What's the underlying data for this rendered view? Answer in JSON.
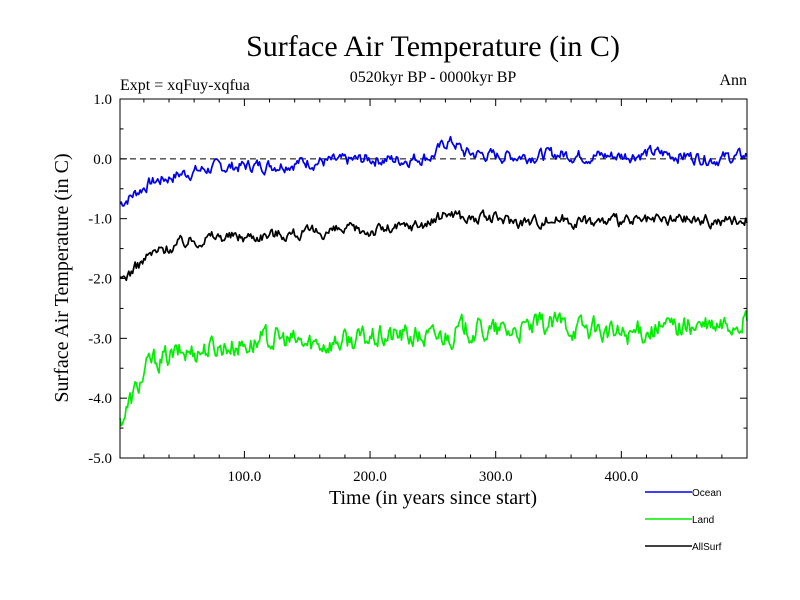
{
  "chart_data": {
    "type": "line",
    "title": "Surface Air Temperature (in C)",
    "subtitle": "0520kyr BP - 0000kyr BP",
    "experiment_label": "Expt = xqFuy-xqfua",
    "season_label": "Ann",
    "xlabel": "Time (in years since start)",
    "ylabel": "Surface Air Temperature (in C)",
    "xlim": [
      1,
      500
    ],
    "ylim": [
      -5.0,
      1.0
    ],
    "x_ticks": [
      100,
      200,
      300,
      400
    ],
    "x_tick_labels": [
      "100.0",
      "200.0",
      "300.0",
      "400.0"
    ],
    "y_ticks": [
      -5,
      -4,
      -3,
      -2,
      -1,
      0,
      1
    ],
    "y_tick_labels": [
      "-5.0",
      "-4.0",
      "-3.0",
      "-2.0",
      "-1.0",
      "0.0",
      "1.0"
    ],
    "reference_line": 0.0,
    "series": [
      {
        "name": "Ocean",
        "color": "#0000ee",
        "x": [
          1,
          25,
          50,
          75,
          100,
          125,
          150,
          175,
          200,
          225,
          250,
          262,
          268,
          275,
          300,
          325,
          350,
          375,
          400,
          425,
          450,
          475,
          500
        ],
        "values": [
          -0.75,
          -0.4,
          -0.25,
          -0.15,
          -0.12,
          -0.1,
          -0.05,
          -0.05,
          0.0,
          -0.02,
          0.05,
          0.3,
          0.25,
          0.1,
          0.05,
          0.05,
          0.08,
          0.05,
          0.05,
          0.1,
          0.05,
          0.0,
          0.05
        ]
      },
      {
        "name": "Land",
        "color": "#00ee00",
        "x": [
          1,
          25,
          50,
          75,
          100,
          125,
          150,
          175,
          200,
          225,
          250,
          275,
          300,
          325,
          350,
          375,
          400,
          425,
          450,
          475,
          500
        ],
        "values": [
          -4.4,
          -3.4,
          -3.25,
          -3.15,
          -3.1,
          -3.0,
          -3.1,
          -3.05,
          -3.0,
          -2.95,
          -3.0,
          -2.85,
          -2.9,
          -2.85,
          -2.75,
          -2.85,
          -2.95,
          -2.85,
          -2.8,
          -2.85,
          -2.7
        ]
      },
      {
        "name": "AllSurf",
        "color": "#000000",
        "x": [
          1,
          25,
          50,
          75,
          100,
          125,
          150,
          175,
          200,
          225,
          250,
          262,
          268,
          275,
          300,
          325,
          350,
          375,
          400,
          425,
          450,
          475,
          500
        ],
        "values": [
          -2.05,
          -1.6,
          -1.4,
          -1.3,
          -1.3,
          -1.25,
          -1.25,
          -1.2,
          -1.2,
          -1.15,
          -1.05,
          -0.9,
          -0.9,
          -1.0,
          -1.0,
          -1.05,
          -1.0,
          -1.05,
          -1.05,
          -1.05,
          -1.0,
          -1.05,
          -1.0
        ]
      }
    ],
    "legend": {
      "placement": "bottom-right",
      "entries": [
        "Ocean",
        "Land",
        "AllSurf"
      ]
    }
  }
}
